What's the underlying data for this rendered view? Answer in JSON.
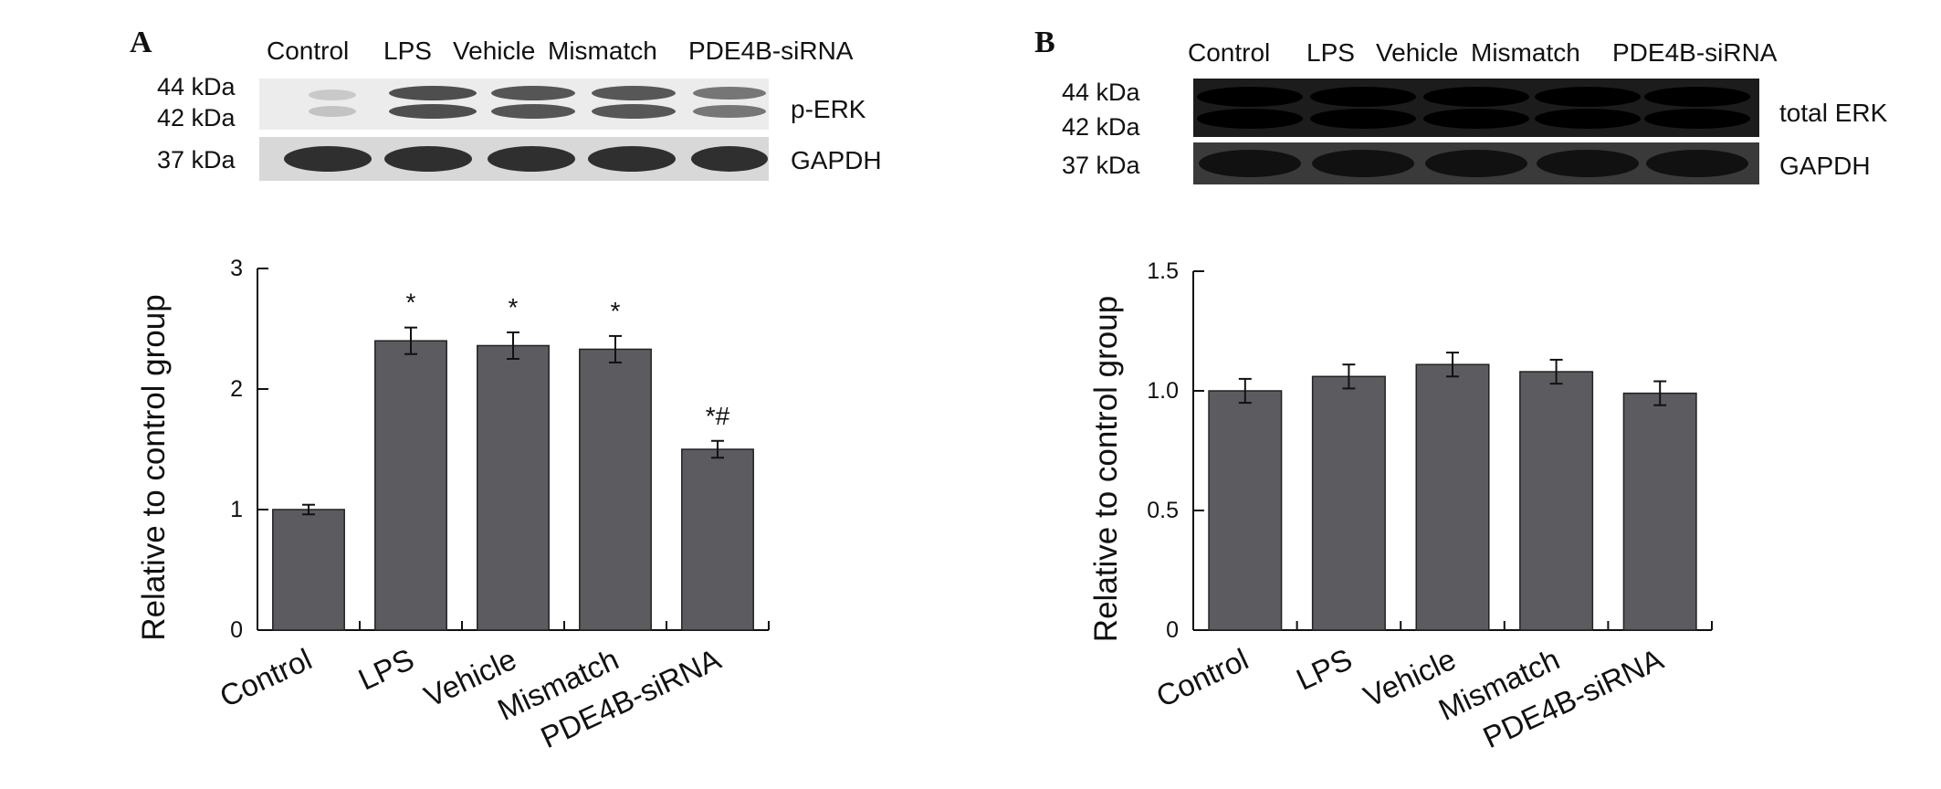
{
  "figure": {
    "blot_lanes": [
      "Control",
      "LPS",
      "Vehicle",
      "Mismatch",
      "PDE4B-siRNA"
    ]
  },
  "panels": [
    {
      "letter": "A",
      "blot": {
        "kda_top": "44 kDa",
        "kda_mid": "42 kDa",
        "kda_loading": "37 kDa",
        "target_label": "p-ERK",
        "loading_label": "GAPDH"
      }
    },
    {
      "letter": "B",
      "blot": {
        "kda_top": "44 kDa",
        "kda_mid": "42 kDa",
        "kda_loading": "37 kDa",
        "target_label": "total ERK",
        "loading_label": "GAPDH"
      }
    }
  ],
  "chart_data": [
    {
      "type": "bar",
      "panel": "A",
      "categories": [
        "Control",
        "LPS",
        "Vehicle",
        "Mismatch",
        "PDE4B-siRNA"
      ],
      "values": [
        1.0,
        2.4,
        2.36,
        2.33,
        1.5
      ],
      "errors": [
        0.04,
        0.11,
        0.11,
        0.11,
        0.07
      ],
      "annotations": [
        "",
        "*",
        "*",
        "*",
        "*#"
      ],
      "ylabel": "Relative to control group",
      "ylim": [
        0,
        3
      ],
      "yticks": [
        "0",
        "1",
        "2",
        "3"
      ],
      "bar_color": "#5c5c60",
      "grid": false
    },
    {
      "type": "bar",
      "panel": "B",
      "categories": [
        "Control",
        "LPS",
        "Vehicle",
        "Mismatch",
        "PDE4B-siRNA"
      ],
      "values": [
        1.0,
        1.06,
        1.11,
        1.08,
        0.99
      ],
      "errors": [
        0.05,
        0.05,
        0.05,
        0.05,
        0.05
      ],
      "annotations": [
        "",
        "",
        "",
        "",
        ""
      ],
      "ylabel": "Relative to control group",
      "ylim": [
        0,
        1.5
      ],
      "yticks": [
        "0",
        "0.5",
        "1.0",
        "1.5"
      ],
      "bar_color": "#5c5c60",
      "grid": false
    }
  ]
}
